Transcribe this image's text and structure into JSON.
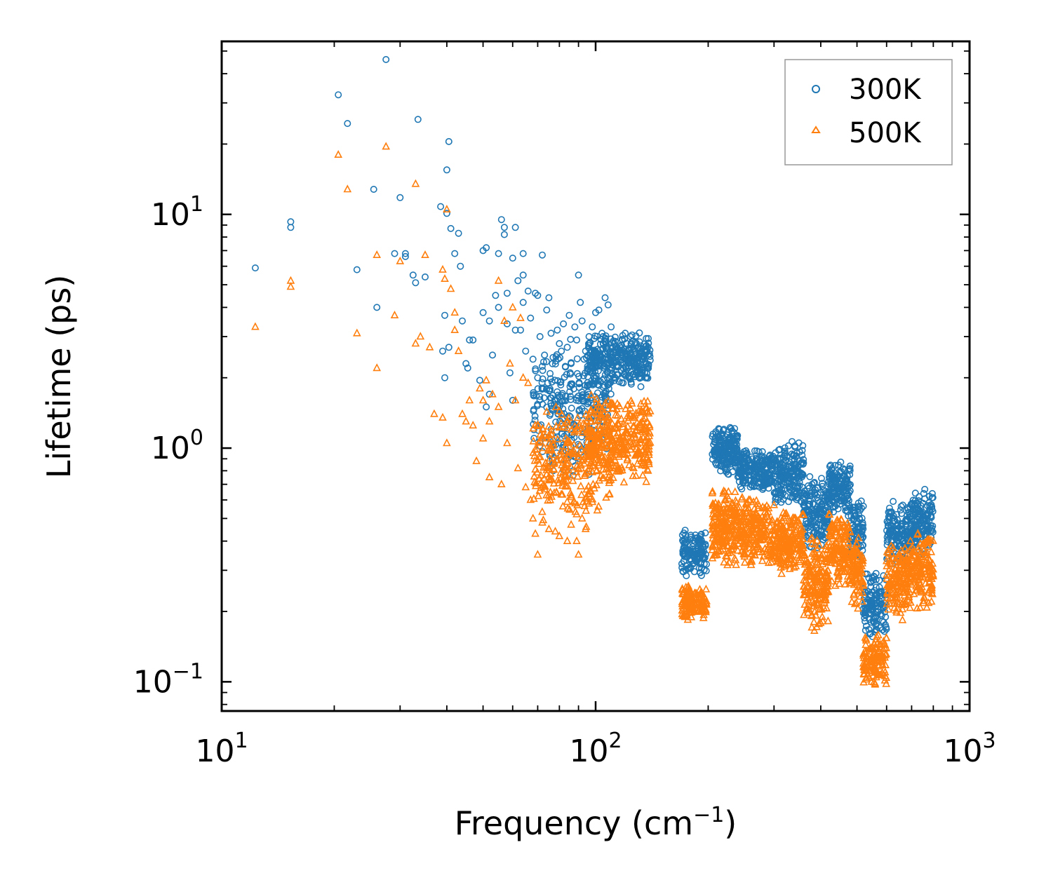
{
  "chart_data": {
    "type": "scatter",
    "title": "",
    "xlabel": "Frequency (cm",
    "xlabel_sup": "−1",
    "xlabel_end": ")",
    "ylabel": "Lifetime (ps)",
    "xscale": "log",
    "yscale": "log",
    "xlim": [
      10,
      1000
    ],
    "ylim": [
      0.075,
      55
    ],
    "x_ticks": [
      {
        "value": 10,
        "base": "10",
        "exp": "1"
      },
      {
        "value": 100,
        "base": "10",
        "exp": "2"
      },
      {
        "value": 1000,
        "base": "10",
        "exp": "3"
      }
    ],
    "y_ticks": [
      {
        "value": 0.1,
        "base": "10",
        "exp": "−1"
      },
      {
        "value": 1,
        "base": "10",
        "exp": "0"
      },
      {
        "value": 10,
        "base": "10",
        "exp": "1"
      }
    ],
    "legend": {
      "position": "top-right"
    },
    "series": [
      {
        "name": "300K",
        "color": "#1f77b4",
        "marker": "circle",
        "points": [
          [
            12.3,
            5.9
          ],
          [
            15.3,
            8.8
          ],
          [
            15.3,
            9.3
          ],
          [
            20.5,
            32.5
          ],
          [
            21.7,
            24.5
          ],
          [
            23,
            5.8
          ],
          [
            25.5,
            12.8
          ],
          [
            26,
            4.0
          ],
          [
            27.5,
            46
          ],
          [
            29,
            6.8
          ],
          [
            30,
            11.8
          ],
          [
            31,
            6.8
          ],
          [
            31,
            6.6
          ],
          [
            32.5,
            5.5
          ],
          [
            33,
            5.1
          ],
          [
            33.5,
            25.5
          ],
          [
            35,
            5.4
          ],
          [
            38.5,
            10.8
          ],
          [
            39,
            2.6
          ],
          [
            39.5,
            3.7
          ],
          [
            39.5,
            2.0
          ],
          [
            40,
            10.1
          ],
          [
            40,
            15.5
          ],
          [
            40.5,
            20.5
          ],
          [
            40.5,
            2.7
          ],
          [
            41,
            8.7
          ],
          [
            42,
            6.8
          ],
          [
            43,
            8.3
          ],
          [
            43.5,
            6.0
          ],
          [
            44,
            3.5
          ],
          [
            45,
            2.3
          ],
          [
            45.5,
            2.2
          ],
          [
            46,
            2.9
          ],
          [
            47,
            2.9
          ],
          [
            49,
            1.95
          ],
          [
            50,
            7.0
          ],
          [
            50,
            3.8
          ],
          [
            51,
            7.2
          ],
          [
            51,
            1.5
          ],
          [
            52,
            3.5
          ],
          [
            52,
            1.7
          ],
          [
            53,
            2.5
          ],
          [
            54,
            4.5
          ],
          [
            55,
            6.8
          ],
          [
            55,
            4.0
          ],
          [
            56,
            9.5
          ],
          [
            57,
            8.8
          ],
          [
            57,
            8.2
          ],
          [
            58,
            4.6
          ],
          [
            58,
            3.4
          ],
          [
            59,
            2.1
          ],
          [
            60,
            1.6
          ],
          [
            60,
            6.5
          ],
          [
            61,
            8.8
          ],
          [
            61,
            3.2
          ],
          [
            62,
            5.2
          ],
          [
            63,
            3.2
          ],
          [
            64,
            5.5
          ],
          [
            64,
            6.8
          ],
          [
            64,
            4.2
          ],
          [
            65,
            2.6
          ],
          [
            66,
            4.7
          ],
          [
            67,
            3.6
          ],
          [
            68,
            2.4
          ],
          [
            69,
            4.6
          ],
          [
            70,
            4.5
          ],
          [
            70,
            2.0
          ],
          [
            71,
            3.0
          ],
          [
            72,
            6.7
          ],
          [
            73,
            2.5
          ],
          [
            74,
            3.9
          ],
          [
            75,
            4.4
          ],
          [
            76,
            3.1
          ],
          [
            77,
            0.8
          ],
          [
            78,
            1.1
          ],
          [
            79,
            3.2
          ],
          [
            80,
            2.8
          ],
          [
            81,
            2.6
          ],
          [
            82,
            3.4
          ],
          [
            84,
            2.7
          ],
          [
            85,
            3.7
          ],
          [
            86,
            2.3
          ],
          [
            88,
            3.3
          ],
          [
            89,
            2.9
          ],
          [
            90,
            5.5
          ],
          [
            91,
            4.2
          ],
          [
            92,
            3.5
          ],
          [
            94,
            2.6
          ],
          [
            96,
            3.0
          ],
          [
            98,
            3.3
          ],
          [
            100,
            3.8
          ],
          [
            102,
            3.9
          ],
          [
            104,
            3.1
          ],
          [
            106,
            4.4
          ],
          [
            108,
            4.1
          ],
          [
            110,
            3.3
          ],
          [
            112,
            2.8
          ],
          [
            115,
            2.6
          ],
          [
            118,
            2.9
          ],
          [
            120,
            3.1
          ],
          [
            124,
            3.0
          ],
          [
            128,
            2.4
          ],
          [
            130,
            2.7
          ],
          [
            134,
            2.2
          ],
          [
            136,
            2.0
          ],
          [
            138,
            2.5
          ]
        ],
        "clusters": [
          {
            "xrange": [
              68,
              110
            ],
            "yrange": [
              0.9,
              3.0
            ],
            "n": 260
          },
          {
            "xrange": [
              95,
              140
            ],
            "yrange": [
              1.8,
              3.2
            ],
            "n": 320
          },
          {
            "xrange": [
              75,
              100
            ],
            "yrange": [
              0.75,
              1.3
            ],
            "n": 60
          },
          {
            "xrange": [
              170,
              198
            ],
            "yrange": [
              0.28,
              0.45
            ],
            "n": 140
          },
          {
            "xrange": [
              205,
              240
            ],
            "yrange": [
              0.75,
              1.25
            ],
            "n": 190
          },
          {
            "xrange": [
              240,
              300
            ],
            "yrange": [
              0.65,
              1.0
            ],
            "n": 220
          },
          {
            "xrange": [
              300,
              360
            ],
            "yrange": [
              0.55,
              1.1
            ],
            "n": 200
          },
          {
            "xrange": [
              360,
              420
            ],
            "yrange": [
              0.35,
              0.8
            ],
            "n": 170
          },
          {
            "xrange": [
              420,
              480
            ],
            "yrange": [
              0.5,
              0.9
            ],
            "n": 150
          },
          {
            "xrange": [
              480,
              520
            ],
            "yrange": [
              0.3,
              0.65
            ],
            "n": 90
          },
          {
            "xrange": [
              520,
              600
            ],
            "yrange": [
              0.15,
              0.3
            ],
            "n": 130
          },
          {
            "xrange": [
              600,
              690
            ],
            "yrange": [
              0.3,
              0.6
            ],
            "n": 150
          },
          {
            "xrange": [
              690,
              800
            ],
            "yrange": [
              0.35,
              0.68
            ],
            "n": 160
          }
        ]
      },
      {
        "name": "500K",
        "color": "#ff7f0e",
        "marker": "triangle",
        "points": [
          [
            12.3,
            3.3
          ],
          [
            15.3,
            4.9
          ],
          [
            15.3,
            5.2
          ],
          [
            20.5,
            18
          ],
          [
            21.7,
            12.8
          ],
          [
            23,
            3.1
          ],
          [
            26,
            2.2
          ],
          [
            26,
            6.7
          ],
          [
            27.5,
            19.5
          ],
          [
            29,
            3.7
          ],
          [
            30,
            6.3
          ],
          [
            33,
            13.5
          ],
          [
            33,
            2.8
          ],
          [
            34,
            3.0
          ],
          [
            35,
            6.7
          ],
          [
            36,
            2.7
          ],
          [
            37,
            1.4
          ],
          [
            39,
            5.8
          ],
          [
            39,
            1.35
          ],
          [
            39.5,
            5.3
          ],
          [
            40,
            10.5
          ],
          [
            40,
            1.05
          ],
          [
            41,
            4.8
          ],
          [
            42,
            3.8
          ],
          [
            42,
            3.2
          ],
          [
            43,
            2.6
          ],
          [
            44,
            1.4
          ],
          [
            45,
            1.3
          ],
          [
            46,
            1.6
          ],
          [
            47,
            1.25
          ],
          [
            48,
            0.88
          ],
          [
            49,
            1.8
          ],
          [
            50,
            1.6
          ],
          [
            50,
            1.1
          ],
          [
            51,
            1.95
          ],
          [
            52,
            1.3
          ],
          [
            52,
            0.75
          ],
          [
            53,
            1.7
          ],
          [
            55,
            5.2
          ],
          [
            55,
            1.5
          ],
          [
            56,
            0.7
          ],
          [
            57,
            3.5
          ],
          [
            58,
            1.05
          ],
          [
            59,
            2.3
          ],
          [
            60,
            4.0
          ],
          [
            61,
            1.6
          ],
          [
            62,
            0.82
          ],
          [
            63,
            3.6
          ],
          [
            64,
            2.0
          ],
          [
            65,
            0.68
          ],
          [
            66,
            1.9
          ],
          [
            67,
            0.6
          ],
          [
            68,
            0.5
          ],
          [
            69,
            0.43
          ],
          [
            70,
            0.35
          ],
          [
            72,
            0.48
          ],
          [
            75,
            0.45
          ],
          [
            78,
            0.44
          ],
          [
            80,
            0.42
          ],
          [
            84,
            0.4
          ],
          [
            86,
            0.47
          ],
          [
            89,
            0.4
          ],
          [
            90,
            0.35
          ],
          [
            92,
            0.5
          ],
          [
            94,
            0.45
          ]
        ],
        "clusters": [
          {
            "xrange": [
              68,
              110
            ],
            "yrange": [
              0.45,
              1.6
            ],
            "n": 280
          },
          {
            "xrange": [
              95,
              140
            ],
            "yrange": [
              0.7,
              1.7
            ],
            "n": 340
          },
          {
            "xrange": [
              170,
              198
            ],
            "yrange": [
              0.18,
              0.26
            ],
            "n": 130
          },
          {
            "xrange": [
              205,
              240
            ],
            "yrange": [
              0.3,
              0.7
            ],
            "n": 190
          },
          {
            "xrange": [
              240,
              300
            ],
            "yrange": [
              0.3,
              0.65
            ],
            "n": 220
          },
          {
            "xrange": [
              300,
              360
            ],
            "yrange": [
              0.28,
              0.55
            ],
            "n": 200
          },
          {
            "xrange": [
              360,
              420
            ],
            "yrange": [
              0.16,
              0.45
            ],
            "n": 180
          },
          {
            "xrange": [
              420,
              480
            ],
            "yrange": [
              0.25,
              0.55
            ],
            "n": 150
          },
          {
            "xrange": [
              480,
              520
            ],
            "yrange": [
              0.2,
              0.45
            ],
            "n": 90
          },
          {
            "xrange": [
              520,
              600
            ],
            "yrange": [
              0.095,
              0.16
            ],
            "n": 130
          },
          {
            "xrange": [
              600,
              690
            ],
            "yrange": [
              0.18,
              0.4
            ],
            "n": 150
          },
          {
            "xrange": [
              690,
              800
            ],
            "yrange": [
              0.2,
              0.45
            ],
            "n": 160
          }
        ]
      }
    ]
  }
}
